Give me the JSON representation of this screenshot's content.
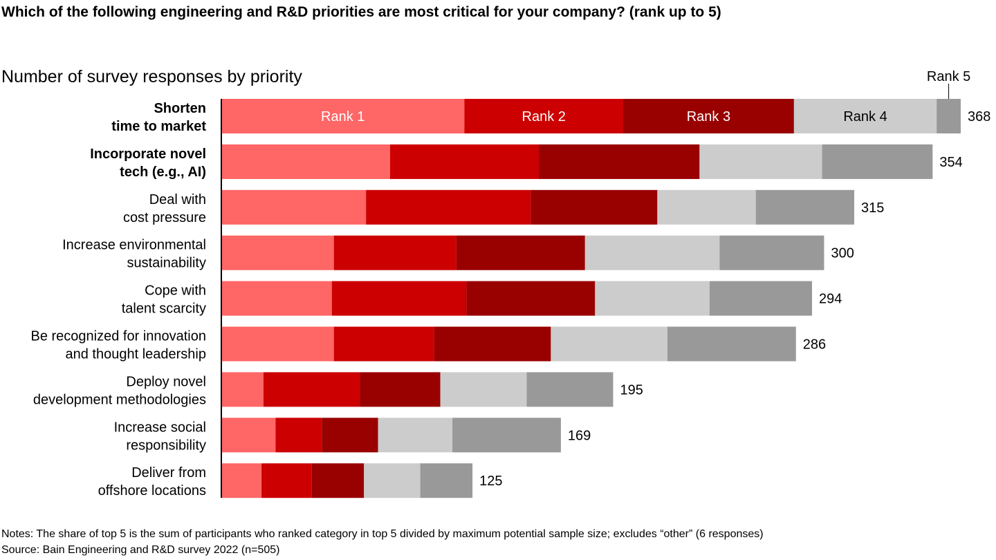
{
  "title": "Which of the following engineering and R&D priorities are most critical for your company? (rank up to 5)",
  "subtitle": "Number of survey responses by priority",
  "chart_data": {
    "type": "bar",
    "orientation": "horizontal",
    "stacked": true,
    "categories": [
      [
        "Shorten",
        "time to market"
      ],
      [
        "Incorporate novel",
        "tech (e.g., AI)"
      ],
      [
        "Deal with",
        "cost pressure"
      ],
      [
        "Increase environmental",
        "sustainability"
      ],
      [
        "Cope with",
        "talent scarcity"
      ],
      [
        "Be recognized for innovation",
        "and thought leadership"
      ],
      [
        "Deploy novel",
        "development methodologies"
      ],
      [
        "Increase social",
        "responsibility"
      ],
      [
        "Deliver from",
        "offshore locations"
      ]
    ],
    "bold_categories": [
      0,
      1
    ],
    "totals": [
      "368",
      "354",
      "315",
      "300",
      "294",
      "286",
      "195",
      "169",
      "125"
    ],
    "series": [
      {
        "name": "Rank 1",
        "color": "#ff6666",
        "values": [
          121,
          84,
          72,
          56,
          55,
          56,
          21,
          27,
          20
        ]
      },
      {
        "name": "Rank 2",
        "color": "#cc0000",
        "values": [
          79,
          74,
          82,
          61,
          67,
          50,
          48,
          23,
          25
        ]
      },
      {
        "name": "Rank 3",
        "color": "#990000",
        "values": [
          85,
          80,
          63,
          64,
          64,
          58,
          40,
          28,
          26
        ]
      },
      {
        "name": "Rank 4",
        "color": "#cccccc",
        "values": [
          71,
          61,
          49,
          67,
          57,
          58,
          43,
          37,
          28
        ]
      },
      {
        "name": "Rank 5",
        "color": "#999999",
        "values": [
          12,
          55,
          49,
          52,
          51,
          64,
          43,
          54,
          26
        ]
      }
    ],
    "xlim": [
      0,
      368
    ],
    "grid": false,
    "legend": "inline labels on first bar"
  },
  "notes": "Notes: The share of top 5 is the sum of participants who ranked category in top 5 divided by maximum potential sample size; excludes “other” (6 responses)",
  "source": "Source: Bain Engineering and R&D survey 2022 (n=505)"
}
